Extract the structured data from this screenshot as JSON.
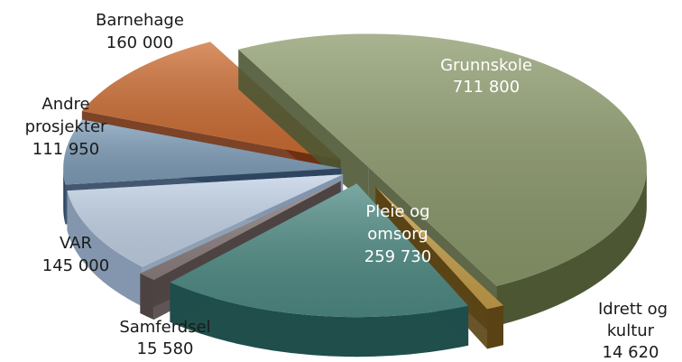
{
  "chart_data": {
    "type": "pie",
    "style": "3d-exploded",
    "slices": [
      {
        "name": "Grunnskole",
        "value_label": "711 800",
        "value": 711800,
        "color": "#8c9a6c",
        "side": "#4c5633",
        "label_color": "#ffffff"
      },
      {
        "name": "Idrett og kultur",
        "value_label": "14 620",
        "value": 14620,
        "color": "#c7a04a",
        "side": "#5a4214",
        "label_color": "#1a1a1a"
      },
      {
        "name": "Pleie og omsorg",
        "value_label": "259 730",
        "value": 259730,
        "color": "#4f8b84",
        "side": "#1f4e4b",
        "label_color": "#ffffff"
      },
      {
        "name": "Samferdsel",
        "value_label": "15 580",
        "value": 15580,
        "color": "#8d807f",
        "side": "#4e4343",
        "label_color": "#1a1a1a"
      },
      {
        "name": "VAR",
        "value_label": "145 000",
        "value": 145000,
        "color": "#c2d2e6",
        "side": "#8396ad",
        "label_color": "#1a1a1a"
      },
      {
        "name": "Andre prosjekter",
        "value_label": "111 950",
        "value": 111950,
        "color": "#7f9eb9",
        "side": "#2f4660",
        "label_color": "#1a1a1a"
      },
      {
        "name": "Barnehage",
        "value_label": "160 000",
        "value": 160000,
        "color": "#cd6d33",
        "side": "#6e2f10",
        "label_color": "#1a1a1a"
      }
    ]
  }
}
